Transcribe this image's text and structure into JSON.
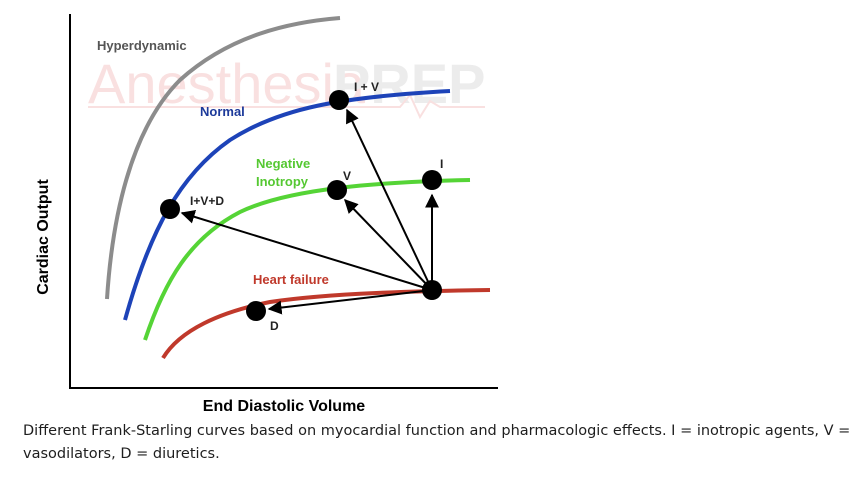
{
  "watermark": {
    "part1": "Anesthesia",
    "part2": "PREP"
  },
  "axes": {
    "xlabel": "End Diastolic Volume",
    "ylabel": "Cardiac Output"
  },
  "curves": {
    "hyperdynamic": {
      "label": "Hyperdynamic",
      "color": "#8c8c8c"
    },
    "normal": {
      "label": "Normal",
      "color": "#1d43b8"
    },
    "negative_inotropy": {
      "label_line1": "Negative",
      "label_line2": "Inotropy",
      "color": "#55d436"
    },
    "heart_failure": {
      "label": "Heart failure",
      "color": "#c0392b"
    }
  },
  "points": {
    "i_plus_v": "I + V",
    "i_v_d": "I+V+D",
    "v": "V",
    "i": "I",
    "d": "D"
  },
  "caption": "Different Frank-Starling curves based on myocardial function and pharmacologic effects. I = inotropic agents, V = vasodilators, D = diuretics."
}
